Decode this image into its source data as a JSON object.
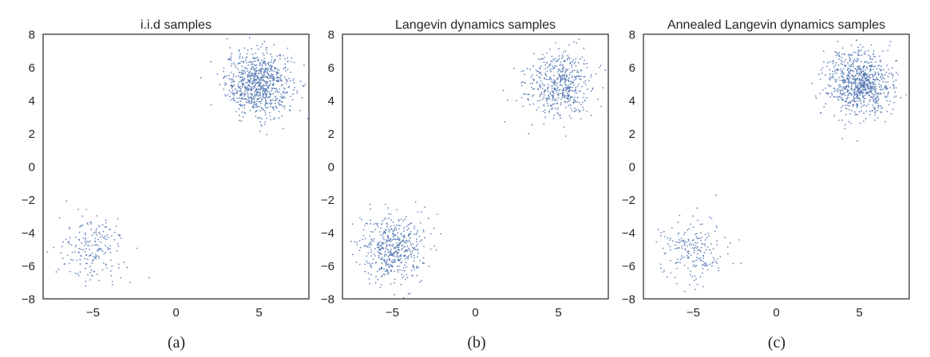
{
  "chart_data": [
    {
      "type": "scatter",
      "title": "i.i.d samples",
      "caption": "(a)",
      "xlim": [
        -8,
        8
      ],
      "ylim": [
        -8,
        8
      ],
      "xticks": [
        -5,
        0,
        5
      ],
      "yticks": [
        -8,
        -6,
        -4,
        -2,
        0,
        2,
        4,
        6,
        8
      ],
      "grid": false,
      "color": "#4c72b0",
      "clusters": [
        {
          "center": [
            5,
            5
          ],
          "spread": 1,
          "count": 800
        },
        {
          "center": [
            -5,
            -5
          ],
          "spread": 1,
          "count": 200
        }
      ]
    },
    {
      "type": "scatter",
      "title": "Langevin dynamics samples",
      "caption": "(b)",
      "xlim": [
        -8,
        8
      ],
      "ylim": [
        -8,
        8
      ],
      "xticks": [
        -5,
        0,
        5
      ],
      "yticks": [
        -8,
        -6,
        -4,
        -2,
        0,
        2,
        4,
        6,
        8
      ],
      "grid": false,
      "color": "#4c72b0",
      "clusters": [
        {
          "center": [
            5,
            5
          ],
          "spread": 1,
          "count": 500
        },
        {
          "center": [
            -5,
            -5
          ],
          "spread": 1,
          "count": 500
        }
      ]
    },
    {
      "type": "scatter",
      "title": "Annealed Langevin dynamics samples",
      "caption": "(c)",
      "xlim": [
        -8,
        8
      ],
      "ylim": [
        -8,
        8
      ],
      "xticks": [
        -5,
        0,
        5
      ],
      "yticks": [
        -8,
        -6,
        -4,
        -2,
        0,
        2,
        4,
        6,
        8
      ],
      "grid": false,
      "color": "#4c72b0",
      "clusters": [
        {
          "center": [
            5,
            5
          ],
          "spread": 1,
          "count": 800
        },
        {
          "center": [
            -5,
            -5
          ],
          "spread": 1,
          "count": 200
        }
      ]
    }
  ]
}
